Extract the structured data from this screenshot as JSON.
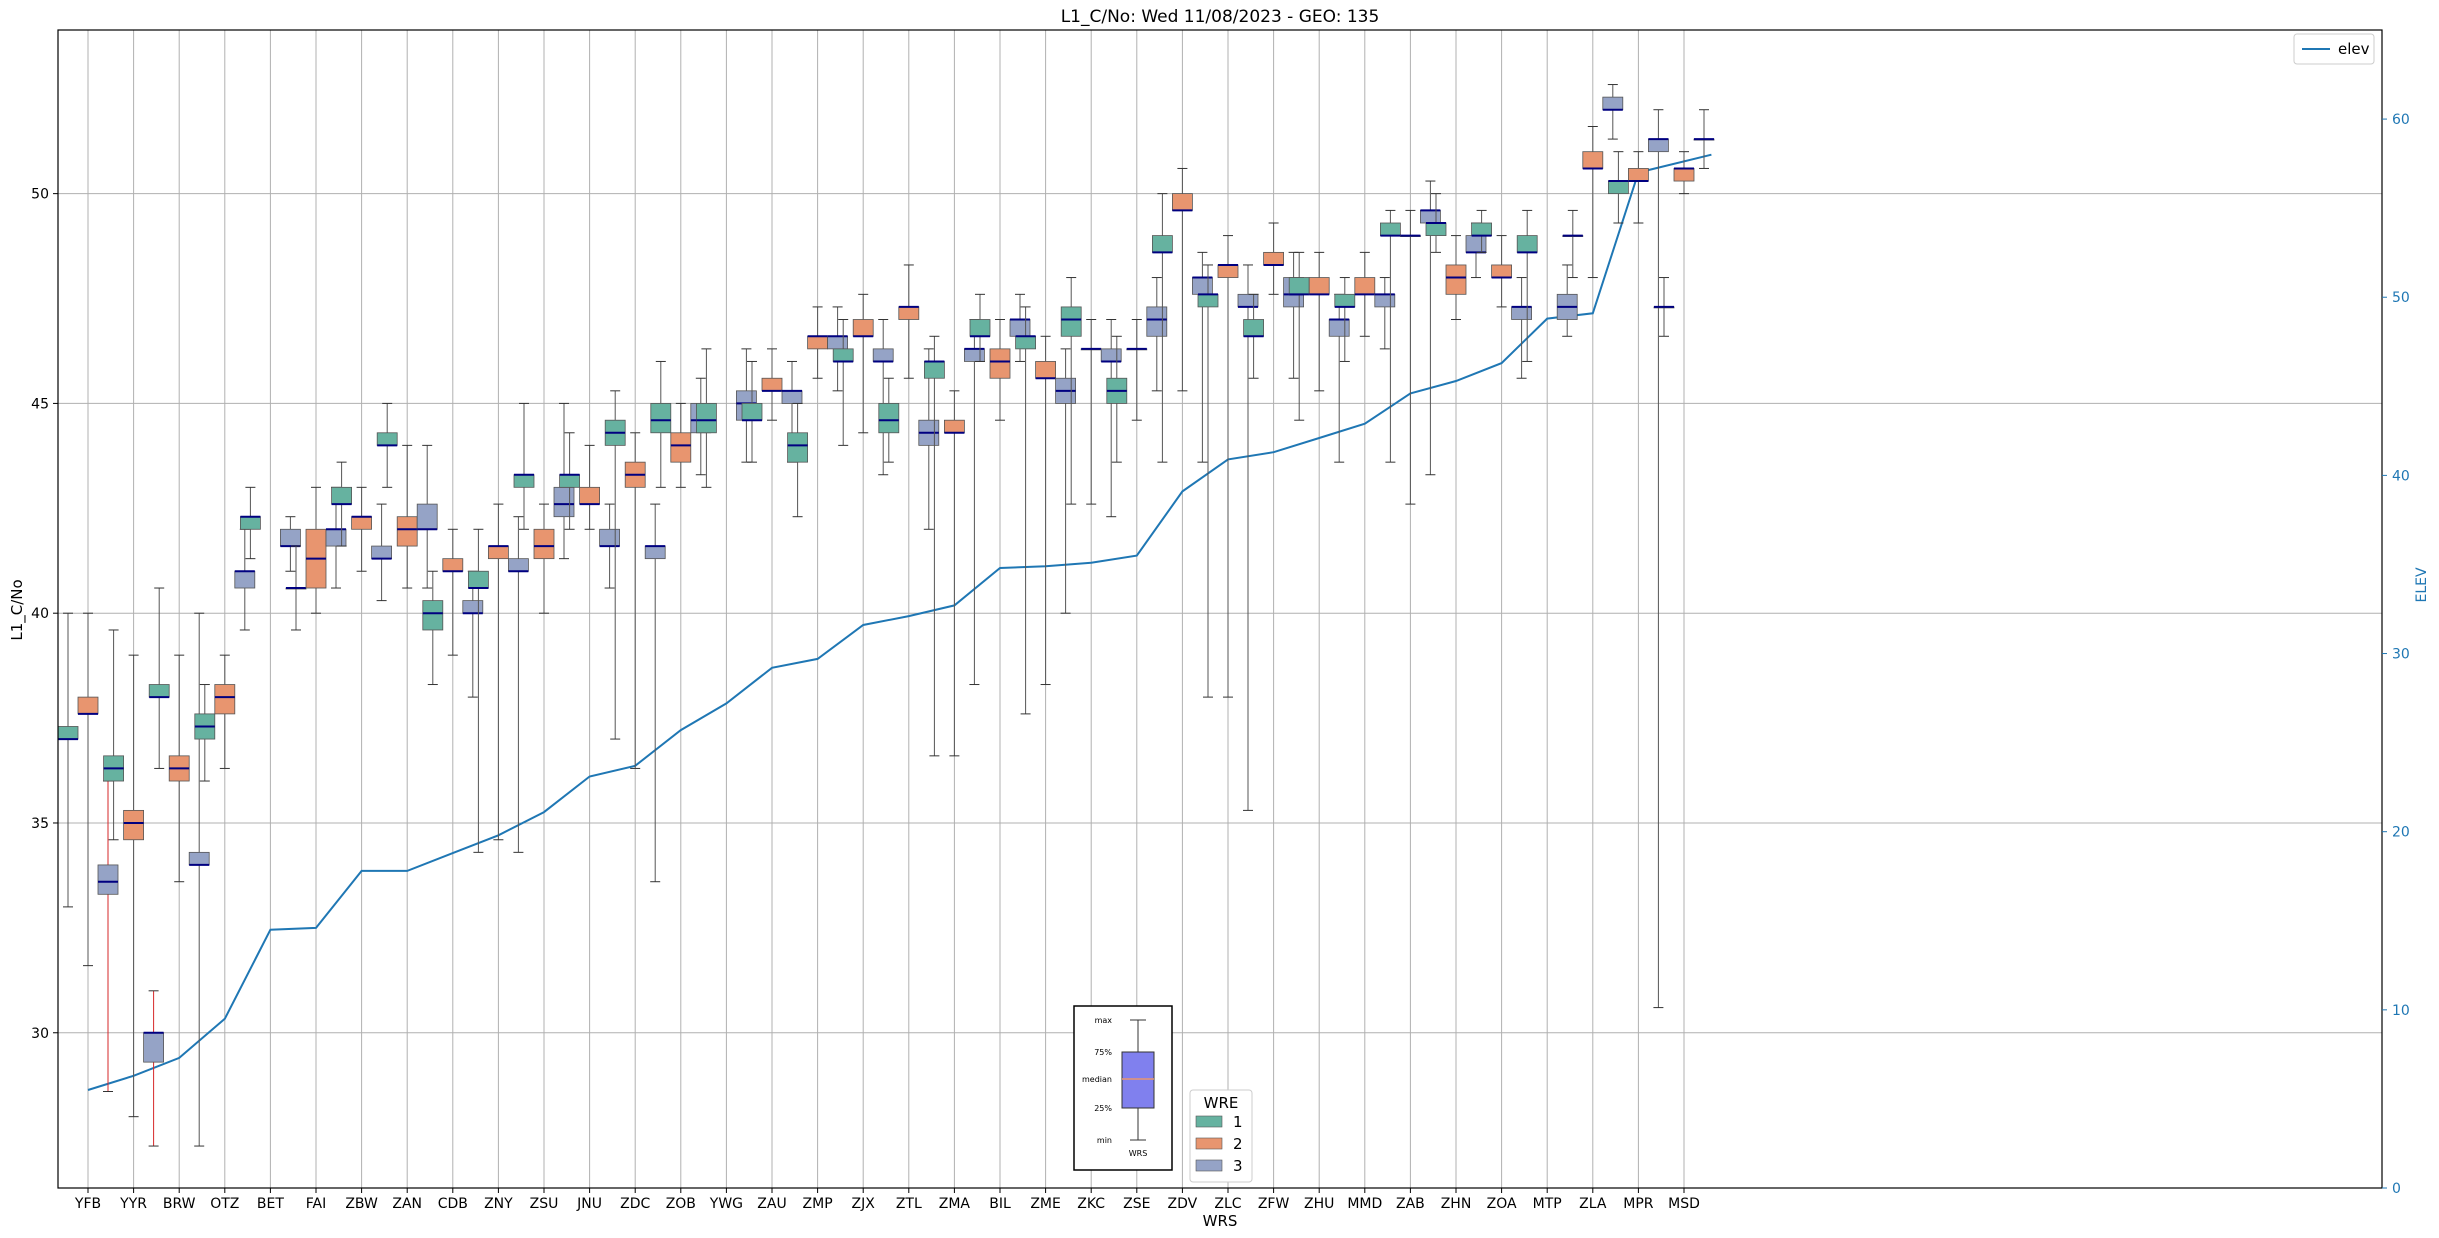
{
  "chart_data": {
    "type": "boxplot",
    "title": "L1_C/No: Wed 11/08/2023 - GEO: 135",
    "xlabel": "WRS",
    "ylabel": "L1_C/No",
    "ylabel_right": "ELEV",
    "ylim": [
      26.3,
      53.9
    ],
    "ylim_right": [
      0,
      65
    ],
    "yticks": [
      30,
      35,
      40,
      45,
      50
    ],
    "yticks_right": [
      0,
      10,
      20,
      30,
      40,
      50,
      60
    ],
    "grid": true,
    "categories": [
      "YFB",
      "YYR",
      "BRW",
      "OTZ",
      "BET",
      "FAI",
      "ZBW",
      "ZAN",
      "CDB",
      "ZNY",
      "ZSU",
      "JNU",
      "ZDC",
      "ZOB",
      "YWG",
      "ZAU",
      "ZMP",
      "ZJX",
      "ZTL",
      "ZMA",
      "BIL",
      "ZME",
      "ZKC",
      "ZSE",
      "ZDV",
      "ZLC",
      "ZFW",
      "ZHU",
      "MMD",
      "ZAB",
      "ZHN",
      "ZOA",
      "MTP",
      "ZLA",
      "MPR",
      "MSD"
    ],
    "box_legend": {
      "title": "WRE",
      "entries": [
        {
          "label": "1",
          "color": "#66b2a0"
        },
        {
          "label": "2",
          "color": "#e8956f"
        },
        {
          "label": "3",
          "color": "#95a3c6"
        }
      ]
    },
    "line_legend": {
      "label": "elev",
      "color": "#1f77b4",
      "position": "upper right"
    },
    "inset_key": {
      "labels": [
        "max",
        "75%",
        "median",
        "25%",
        "min"
      ],
      "xlabel": "WRS",
      "box_color": "#8080ee",
      "median_color": "#e8956f"
    },
    "median_color": "#000080",
    "outlier_whisker_color": "#d62728",
    "boxes": [
      {
        "station": "YFB",
        "wre": 1,
        "min": 33.0,
        "q1": 37.0,
        "median": 37.0,
        "q3": 37.3,
        "max": 40.0
      },
      {
        "station": "YFB",
        "wre": 2,
        "min": 31.6,
        "q1": 37.6,
        "median": 37.6,
        "q3": 38.0,
        "max": 40.0
      },
      {
        "station": "YFB",
        "wre": 3,
        "min": 28.6,
        "q1": 33.3,
        "median": 33.6,
        "q3": 34.0,
        "max": 36.0,
        "whisker_color": "red"
      },
      {
        "station": "YYR",
        "wre": 1,
        "min": 34.6,
        "q1": 36.0,
        "median": 36.3,
        "q3": 36.6,
        "max": 39.6
      },
      {
        "station": "YYR",
        "wre": 2,
        "min": 28.0,
        "q1": 34.6,
        "median": 35.0,
        "q3": 35.3,
        "max": 39.0
      },
      {
        "station": "YYR",
        "wre": 3,
        "min": 27.3,
        "q1": 29.3,
        "median": 30.0,
        "q3": 30.0,
        "max": 31.0,
        "whisker_color": "red"
      },
      {
        "station": "BRW",
        "wre": 1,
        "min": 36.3,
        "q1": 38.0,
        "median": 38.0,
        "q3": 38.3,
        "max": 40.6
      },
      {
        "station": "BRW",
        "wre": 2,
        "min": 33.6,
        "q1": 36.0,
        "median": 36.3,
        "q3": 36.6,
        "max": 39.0
      },
      {
        "station": "BRW",
        "wre": 3,
        "min": 27.3,
        "q1": 34.0,
        "median": 34.0,
        "q3": 34.3,
        "max": 40.0
      },
      {
        "station": "OTZ",
        "wre": 1,
        "min": 36.0,
        "q1": 37.0,
        "median": 37.3,
        "q3": 37.6,
        "max": 38.3
      },
      {
        "station": "OTZ",
        "wre": 2,
        "min": 36.3,
        "q1": 37.6,
        "median": 38.0,
        "q3": 38.3,
        "max": 39.0
      },
      {
        "station": "OTZ",
        "wre": 3,
        "min": 39.6,
        "q1": 40.6,
        "median": 41.0,
        "q3": 41.0,
        "max": 42.0
      },
      {
        "station": "BET",
        "wre": 1,
        "min": 41.3,
        "q1": 42.0,
        "median": 42.3,
        "q3": 42.3,
        "max": 43.0
      },
      {
        "station": "BET",
        "wre": 3,
        "min": 41.0,
        "q1": 41.6,
        "median": 41.6,
        "q3": 42.0,
        "max": 42.3
      },
      {
        "station": "FAI",
        "wre": 1,
        "min": 39.6,
        "q1": 40.6,
        "median": 40.6,
        "q3": 40.6,
        "max": 41.6
      },
      {
        "station": "FAI",
        "wre": 2,
        "min": 40.0,
        "q1": 40.6,
        "median": 41.3,
        "q3": 42.0,
        "max": 43.0
      },
      {
        "station": "FAI",
        "wre": 3,
        "min": 40.6,
        "q1": 41.6,
        "median": 42.0,
        "q3": 42.0,
        "max": 43.0
      },
      {
        "station": "ZBW",
        "wre": 1,
        "min": 41.6,
        "q1": 42.6,
        "median": 42.6,
        "q3": 43.0,
        "max": 43.6
      },
      {
        "station": "ZBW",
        "wre": 2,
        "min": 41.0,
        "q1": 42.0,
        "median": 42.3,
        "q3": 42.3,
        "max": 43.0
      },
      {
        "station": "ZBW",
        "wre": 3,
        "min": 40.3,
        "q1": 41.3,
        "median": 41.3,
        "q3": 41.6,
        "max": 42.6
      },
      {
        "station": "ZAN",
        "wre": 1,
        "min": 43.0,
        "q1": 44.0,
        "median": 44.0,
        "q3": 44.3,
        "max": 45.0
      },
      {
        "station": "ZAN",
        "wre": 2,
        "min": 40.6,
        "q1": 41.6,
        "median": 42.0,
        "q3": 42.3,
        "max": 44.0
      },
      {
        "station": "ZAN",
        "wre": 3,
        "min": 40.6,
        "q1": 42.0,
        "median": 42.0,
        "q3": 42.6,
        "max": 44.0
      },
      {
        "station": "CDB",
        "wre": 1,
        "min": 38.3,
        "q1": 39.6,
        "median": 40.0,
        "q3": 40.3,
        "max": 41.0
      },
      {
        "station": "CDB",
        "wre": 2,
        "min": 39.0,
        "q1": 41.0,
        "median": 41.0,
        "q3": 41.3,
        "max": 42.0
      },
      {
        "station": "CDB",
        "wre": 3,
        "min": 38.0,
        "q1": 40.0,
        "median": 40.0,
        "q3": 40.3,
        "max": 41.0
      },
      {
        "station": "ZNY",
        "wre": 1,
        "min": 34.3,
        "q1": 40.6,
        "median": 40.6,
        "q3": 41.0,
        "max": 42.0
      },
      {
        "station": "ZNY",
        "wre": 2,
        "min": 34.6,
        "q1": 41.3,
        "median": 41.6,
        "q3": 41.6,
        "max": 42.6
      },
      {
        "station": "ZNY",
        "wre": 3,
        "min": 34.3,
        "q1": 41.0,
        "median": 41.0,
        "q3": 41.3,
        "max": 42.3
      },
      {
        "station": "ZSU",
        "wre": 1,
        "min": 42.0,
        "q1": 43.0,
        "median": 43.3,
        "q3": 43.3,
        "max": 45.0
      },
      {
        "station": "ZSU",
        "wre": 2,
        "min": 40.0,
        "q1": 41.3,
        "median": 41.6,
        "q3": 42.0,
        "max": 42.6
      },
      {
        "station": "ZSU",
        "wre": 3,
        "min": 41.3,
        "q1": 42.3,
        "median": 42.6,
        "q3": 43.0,
        "max": 45.0
      },
      {
        "station": "JNU",
        "wre": 1,
        "min": 42.0,
        "q1": 43.0,
        "median": 43.3,
        "q3": 43.3,
        "max": 44.3
      },
      {
        "station": "JNU",
        "wre": 2,
        "min": 42.0,
        "q1": 42.6,
        "median": 42.6,
        "q3": 43.0,
        "max": 44.0
      },
      {
        "station": "JNU",
        "wre": 3,
        "min": 40.6,
        "q1": 41.6,
        "median": 41.6,
        "q3": 42.0,
        "max": 42.6
      },
      {
        "station": "ZDC",
        "wre": 1,
        "min": 37.0,
        "q1": 44.0,
        "median": 44.3,
        "q3": 44.6,
        "max": 45.3
      },
      {
        "station": "ZDC",
        "wre": 2,
        "min": 36.3,
        "q1": 43.0,
        "median": 43.3,
        "q3": 43.6,
        "max": 44.3
      },
      {
        "station": "ZDC",
        "wre": 3,
        "min": 33.6,
        "q1": 41.3,
        "median": 41.6,
        "q3": 41.6,
        "max": 42.6
      },
      {
        "station": "ZOB",
        "wre": 1,
        "min": 43.0,
        "q1": 44.3,
        "median": 44.6,
        "q3": 45.0,
        "max": 46.0
      },
      {
        "station": "ZOB",
        "wre": 2,
        "min": 43.0,
        "q1": 43.6,
        "median": 44.0,
        "q3": 44.3,
        "max": 45.0
      },
      {
        "station": "ZOB",
        "wre": 3,
        "min": 43.3,
        "q1": 44.3,
        "median": 44.6,
        "q3": 45.0,
        "max": 45.6
      },
      {
        "station": "YWG",
        "wre": 1,
        "min": 43.0,
        "q1": 44.3,
        "median": 44.6,
        "q3": 45.0,
        "max": 46.3
      },
      {
        "station": "YWG",
        "wre": 3,
        "min": 43.6,
        "q1": 44.6,
        "median": 45.0,
        "q3": 45.3,
        "max": 46.3
      },
      {
        "station": "ZAU",
        "wre": 1,
        "min": 43.6,
        "q1": 44.6,
        "median": 44.6,
        "q3": 45.0,
        "max": 46.0
      },
      {
        "station": "ZAU",
        "wre": 2,
        "min": 44.6,
        "q1": 45.3,
        "median": 45.3,
        "q3": 45.6,
        "max": 46.3
      },
      {
        "station": "ZAU",
        "wre": 3,
        "min": 43.6,
        "q1": 45.0,
        "median": 45.3,
        "q3": 45.3,
        "max": 46.0
      },
      {
        "station": "ZMP",
        "wre": 1,
        "min": 42.3,
        "q1": 43.6,
        "median": 44.0,
        "q3": 44.3,
        "max": 45.0
      },
      {
        "station": "ZMP",
        "wre": 2,
        "min": 45.6,
        "q1": 46.3,
        "median": 46.6,
        "q3": 46.6,
        "max": 47.3
      },
      {
        "station": "ZMP",
        "wre": 3,
        "min": 45.3,
        "q1": 46.3,
        "median": 46.6,
        "q3": 46.6,
        "max": 47.3
      },
      {
        "station": "ZJX",
        "wre": 1,
        "min": 44.0,
        "q1": 46.0,
        "median": 46.0,
        "q3": 46.3,
        "max": 47.0
      },
      {
        "station": "ZJX",
        "wre": 2,
        "min": 44.3,
        "q1": 46.6,
        "median": 46.6,
        "q3": 47.0,
        "max": 47.6
      },
      {
        "station": "ZJX",
        "wre": 3,
        "min": 43.3,
        "q1": 46.0,
        "median": 46.0,
        "q3": 46.3,
        "max": 47.0
      },
      {
        "station": "ZTL",
        "wre": 1,
        "min": 43.6,
        "q1": 44.3,
        "median": 44.6,
        "q3": 45.0,
        "max": 45.6
      },
      {
        "station": "ZTL",
        "wre": 2,
        "min": 45.6,
        "q1": 47.0,
        "median": 47.3,
        "q3": 47.3,
        "max": 48.3
      },
      {
        "station": "ZTL",
        "wre": 3,
        "min": 42.0,
        "q1": 44.0,
        "median": 44.3,
        "q3": 44.6,
        "max": 46.3
      },
      {
        "station": "ZMA",
        "wre": 1,
        "min": 36.6,
        "q1": 45.6,
        "median": 46.0,
        "q3": 46.0,
        "max": 46.6
      },
      {
        "station": "ZMA",
        "wre": 2,
        "min": 36.6,
        "q1": 44.3,
        "median": 44.3,
        "q3": 44.6,
        "max": 45.3
      },
      {
        "station": "ZMA",
        "wre": 3,
        "min": 38.3,
        "q1": 46.0,
        "median": 46.3,
        "q3": 46.3,
        "max": 47.0
      },
      {
        "station": "BIL",
        "wre": 1,
        "min": 46.0,
        "q1": 46.6,
        "median": 46.6,
        "q3": 47.0,
        "max": 47.6
      },
      {
        "station": "BIL",
        "wre": 2,
        "min": 44.6,
        "q1": 45.6,
        "median": 46.0,
        "q3": 46.3,
        "max": 47.0
      },
      {
        "station": "BIL",
        "wre": 3,
        "min": 46.0,
        "q1": 46.6,
        "median": 47.0,
        "q3": 47.0,
        "max": 47.6
      },
      {
        "station": "ZME",
        "wre": 1,
        "min": 37.6,
        "q1": 46.3,
        "median": 46.6,
        "q3": 46.6,
        "max": 47.3
      },
      {
        "station": "ZME",
        "wre": 2,
        "min": 38.3,
        "q1": 45.6,
        "median": 45.6,
        "q3": 46.0,
        "max": 46.6
      },
      {
        "station": "ZME",
        "wre": 3,
        "min": 40.0,
        "q1": 45.0,
        "median": 45.3,
        "q3": 45.6,
        "max": 46.3
      },
      {
        "station": "ZKC",
        "wre": 1,
        "min": 42.6,
        "q1": 46.6,
        "median": 47.0,
        "q3": 47.3,
        "max": 48.0
      },
      {
        "station": "ZKC",
        "wre": 2,
        "min": 42.6,
        "q1": 46.3,
        "median": 46.3,
        "q3": 46.3,
        "max": 47.0
      },
      {
        "station": "ZKC",
        "wre": 3,
        "min": 42.3,
        "q1": 46.0,
        "median": 46.0,
        "q3": 46.3,
        "max": 47.0
      },
      {
        "station": "ZSE",
        "wre": 1,
        "min": 43.6,
        "q1": 45.0,
        "median": 45.3,
        "q3": 45.6,
        "max": 46.6
      },
      {
        "station": "ZSE",
        "wre": 2,
        "min": 44.6,
        "q1": 46.3,
        "median": 46.3,
        "q3": 46.3,
        "max": 47.0
      },
      {
        "station": "ZSE",
        "wre": 3,
        "min": 45.3,
        "q1": 46.6,
        "median": 47.0,
        "q3": 47.3,
        "max": 48.0
      },
      {
        "station": "ZDV",
        "wre": 1,
        "min": 43.6,
        "q1": 48.6,
        "median": 48.6,
        "q3": 49.0,
        "max": 50.0
      },
      {
        "station": "ZDV",
        "wre": 2,
        "min": 45.3,
        "q1": 49.6,
        "median": 49.6,
        "q3": 50.0,
        "max": 50.6
      },
      {
        "station": "ZDV",
        "wre": 3,
        "min": 43.6,
        "q1": 47.6,
        "median": 48.0,
        "q3": 48.0,
        "max": 48.6
      },
      {
        "station": "ZLC",
        "wre": 1,
        "min": 38.0,
        "q1": 47.3,
        "median": 47.6,
        "q3": 47.6,
        "max": 48.3
      },
      {
        "station": "ZLC",
        "wre": 2,
        "min": 38.0,
        "q1": 48.0,
        "median": 48.3,
        "q3": 48.3,
        "max": 49.0
      },
      {
        "station": "ZLC",
        "wre": 3,
        "min": 35.3,
        "q1": 47.3,
        "median": 47.3,
        "q3": 47.6,
        "max": 48.3
      },
      {
        "station": "ZFW",
        "wre": 1,
        "min": 45.6,
        "q1": 46.6,
        "median": 46.6,
        "q3": 47.0,
        "max": 47.6
      },
      {
        "station": "ZFW",
        "wre": 2,
        "min": 47.6,
        "q1": 48.3,
        "median": 48.3,
        "q3": 48.6,
        "max": 49.3
      },
      {
        "station": "ZFW",
        "wre": 3,
        "min": 45.6,
        "q1": 47.3,
        "median": 47.6,
        "q3": 48.0,
        "max": 48.6
      },
      {
        "station": "ZHU",
        "wre": 1,
        "min": 44.6,
        "q1": 47.6,
        "median": 47.6,
        "q3": 48.0,
        "max": 48.6
      },
      {
        "station": "ZHU",
        "wre": 2,
        "min": 45.3,
        "q1": 47.6,
        "median": 47.6,
        "q3": 48.0,
        "max": 48.6
      },
      {
        "station": "ZHU",
        "wre": 3,
        "min": 43.6,
        "q1": 46.6,
        "median": 47.0,
        "q3": 47.0,
        "max": 47.6
      },
      {
        "station": "MMD",
        "wre": 1,
        "min": 46.0,
        "q1": 47.3,
        "median": 47.3,
        "q3": 47.6,
        "max": 48.0
      },
      {
        "station": "MMD",
        "wre": 2,
        "min": 46.6,
        "q1": 47.6,
        "median": 47.6,
        "q3": 48.0,
        "max": 48.6
      },
      {
        "station": "MMD",
        "wre": 3,
        "min": 46.3,
        "q1": 47.3,
        "median": 47.6,
        "q3": 47.6,
        "max": 48.0
      },
      {
        "station": "ZAB",
        "wre": 1,
        "min": 43.6,
        "q1": 49.0,
        "median": 49.0,
        "q3": 49.3,
        "max": 49.6
      },
      {
        "station": "ZAB",
        "wre": 2,
        "min": 42.6,
        "q1": 49.0,
        "median": 49.0,
        "q3": 49.0,
        "max": 49.6
      },
      {
        "station": "ZAB",
        "wre": 3,
        "min": 43.3,
        "q1": 49.3,
        "median": 49.6,
        "q3": 49.6,
        "max": 50.3
      },
      {
        "station": "ZHN",
        "wre": 1,
        "min": 48.6,
        "q1": 49.0,
        "median": 49.3,
        "q3": 49.3,
        "max": 50.0
      },
      {
        "station": "ZHN",
        "wre": 2,
        "min": 47.0,
        "q1": 47.6,
        "median": 48.0,
        "q3": 48.3,
        "max": 49.0
      },
      {
        "station": "ZHN",
        "wre": 3,
        "min": 48.0,
        "q1": 48.6,
        "median": 48.6,
        "q3": 49.0,
        "max": 49.3
      },
      {
        "station": "ZOA",
        "wre": 1,
        "min": 48.6,
        "q1": 49.0,
        "median": 49.0,
        "q3": 49.3,
        "max": 49.6
      },
      {
        "station": "ZOA",
        "wre": 2,
        "min": 47.3,
        "q1": 48.0,
        "median": 48.0,
        "q3": 48.3,
        "max": 49.0
      },
      {
        "station": "ZOA",
        "wre": 3,
        "min": 45.6,
        "q1": 47.0,
        "median": 47.3,
        "q3": 47.3,
        "max": 48.0
      },
      {
        "station": "MTP",
        "wre": 1,
        "min": 46.0,
        "q1": 48.6,
        "median": 48.6,
        "q3": 49.0,
        "max": 49.6
      },
      {
        "station": "MTP",
        "wre": 3,
        "min": 46.6,
        "q1": 47.0,
        "median": 47.3,
        "q3": 47.6,
        "max": 48.3
      },
      {
        "station": "ZLA",
        "wre": 1,
        "min": 48.0,
        "q1": 49.0,
        "median": 49.0,
        "q3": 49.0,
        "max": 49.6
      },
      {
        "station": "ZLA",
        "wre": 2,
        "min": 48.0,
        "q1": 50.6,
        "median": 50.6,
        "q3": 51.0,
        "max": 51.6
      },
      {
        "station": "ZLA",
        "wre": 3,
        "min": 51.3,
        "q1": 52.0,
        "median": 52.0,
        "q3": 52.3,
        "max": 52.6
      },
      {
        "station": "MPR",
        "wre": 1,
        "min": 49.3,
        "q1": 50.0,
        "median": 50.3,
        "q3": 50.3,
        "max": 51.0
      },
      {
        "station": "MPR",
        "wre": 2,
        "min": 49.3,
        "q1": 50.3,
        "median": 50.3,
        "q3": 50.6,
        "max": 51.0
      },
      {
        "station": "MPR",
        "wre": 3,
        "min": 30.6,
        "q1": 51.0,
        "median": 51.3,
        "q3": 51.3,
        "max": 52.0
      },
      {
        "station": "MSD",
        "wre": 1,
        "min": 46.6,
        "q1": 47.3,
        "median": 47.3,
        "q3": 47.3,
        "max": 48.0
      },
      {
        "station": "MSD",
        "wre": 2,
        "min": 50.0,
        "q1": 50.3,
        "median": 50.6,
        "q3": 50.6,
        "max": 51.0
      },
      {
        "station": "MSD",
        "wre": 3,
        "min": 50.6,
        "q1": 51.3,
        "median": 51.3,
        "q3": 51.3,
        "max": 52.0
      }
    ],
    "elev": [
      5.5,
      6.3,
      7.3,
      9.5,
      14.5,
      14.6,
      17.8,
      17.8,
      18.8,
      19.8,
      21.1,
      23.1,
      23.7,
      25.7,
      27.2,
      29.2,
      29.7,
      31.6,
      32.1,
      32.7,
      34.8,
      34.9,
      35.1,
      35.5,
      39.1,
      40.9,
      41.3,
      42.1,
      42.9,
      44.6,
      45.3,
      46.3,
      48.8,
      49.1,
      57.0,
      58.0
    ],
    "elev_x": [
      0,
      1,
      2,
      3,
      4,
      5,
      6,
      7,
      8,
      9,
      10,
      11,
      12,
      13,
      14,
      15,
      16,
      17,
      18,
      19,
      20,
      21,
      22,
      23,
      24,
      25,
      26,
      27,
      28,
      29,
      30,
      31,
      32,
      33,
      34,
      35.6
    ]
  }
}
